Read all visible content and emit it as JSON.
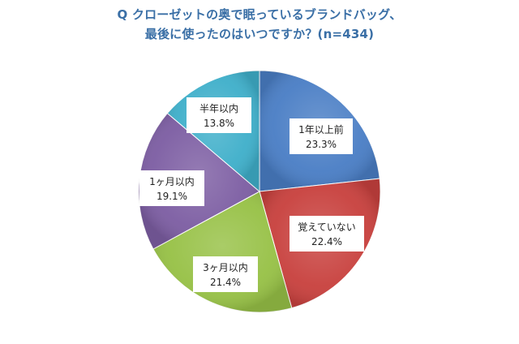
{
  "chart_data": {
    "type": "pie",
    "title_line1": "Q クローゼットの奥で眠っているブランドバッグ、",
    "title_line2": "最後に使ったのはいつですか？(n=434)",
    "slices": [
      {
        "label": "1年以上前",
        "value": 23.3,
        "value_text": "23.3%",
        "color": "#4a7ec5"
      },
      {
        "label": "覚えていない",
        "value": 22.4,
        "value_text": "22.4%",
        "color": "#c8413e"
      },
      {
        "label": "3ヶ月以内",
        "value": 21.4,
        "value_text": "21.4%",
        "color": "#97c146"
      },
      {
        "label": "1ヶ月以内",
        "value": 19.1,
        "value_text": "19.1%",
        "color": "#7d5ea3"
      },
      {
        "label": "半年以内",
        "value": 13.8,
        "value_text": "13.8%",
        "color": "#3fafca"
      }
    ],
    "start_angle_deg": 0,
    "direction": "clockwise"
  }
}
